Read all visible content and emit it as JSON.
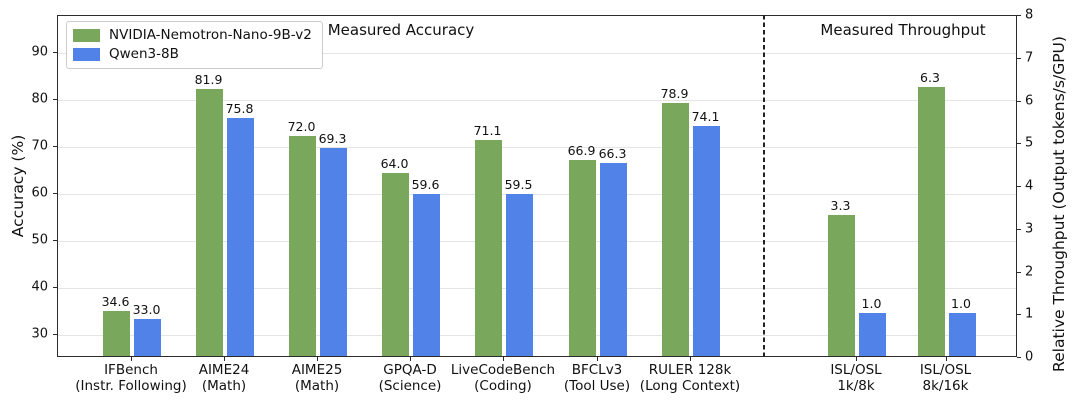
{
  "chart_data": {
    "type": "bar",
    "categories": [
      [
        "IFBench",
        "(Instr. Following)"
      ],
      [
        "AIME24",
        "(Math)"
      ],
      [
        "AIME25",
        "(Math)"
      ],
      [
        "GPQA-D",
        "(Science)"
      ],
      [
        "LiveCodeBench",
        "(Coding)"
      ],
      [
        "BFCLv3",
        "(Tool Use)"
      ],
      [
        "RULER 128k",
        "(Long Context)"
      ],
      [
        "ISL/OSL",
        "1k/8k"
      ],
      [
        "ISL/OSL",
        "8k/16k"
      ]
    ],
    "series": [
      {
        "name": "NVIDIA-Nemotron-Nano-9B-v2",
        "color": "#79a85c",
        "values": [
          34.6,
          81.9,
          72.0,
          64.0,
          71.1,
          66.9,
          78.9,
          3.3,
          6.3
        ],
        "value_labels": [
          "34.6",
          "81.9",
          "72.0",
          "64.0",
          "71.1",
          "66.9",
          "78.9",
          "3.3",
          "6.3"
        ]
      },
      {
        "name": "Qwen3-8B",
        "color": "#5182e8",
        "values": [
          33.0,
          75.8,
          69.3,
          59.6,
          59.5,
          66.3,
          74.1,
          1.0,
          1.0
        ],
        "value_labels": [
          "33.0",
          "75.8",
          "69.3",
          "59.6",
          "59.5",
          "66.3",
          "74.1",
          "1.0",
          "1.0"
        ]
      }
    ],
    "sections": [
      {
        "label": "Measured Accuracy"
      },
      {
        "label": "Measured Throughput"
      }
    ],
    "left_axis": {
      "label": "Accuracy (%)",
      "ticks": [
        30,
        40,
        50,
        60,
        70,
        80,
        90
      ],
      "range": [
        25,
        98
      ],
      "applies_to_category_indices": [
        0,
        1,
        2,
        3,
        4,
        5,
        6
      ]
    },
    "right_axis": {
      "label": "Relative Throughput (Output tokens/s/GPU)",
      "ticks": [
        0,
        1,
        2,
        3,
        4,
        5,
        6,
        7,
        8
      ],
      "range": [
        0,
        8
      ],
      "applies_to_category_indices": [
        7,
        8
      ]
    },
    "grid": "on",
    "legend_position": "upper left",
    "separator": "dashed vertical line between accuracy and throughput groups"
  }
}
